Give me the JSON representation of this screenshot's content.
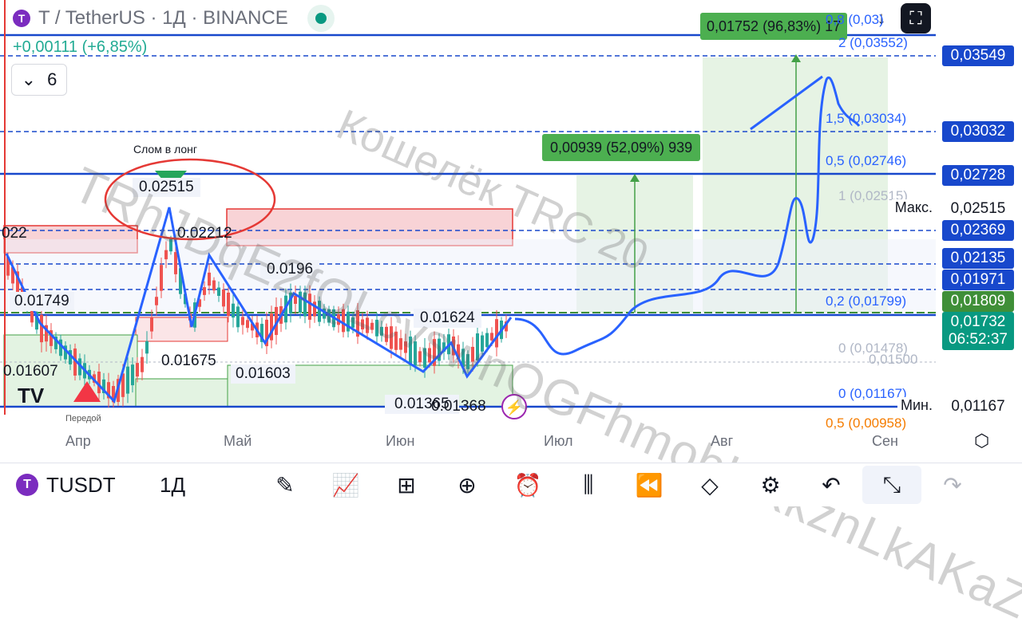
{
  "header": {
    "title": "T / TetherUS · 1Д · BINANCE",
    "change": "+0,00111 (+6,85%)",
    "indicators_count": "6"
  },
  "top_buttons": {
    "download_icon": "arrow-down-icon",
    "fullscreen_icon": "fullscreen-icon"
  },
  "price_scale": [
    {
      "label": "0,03549",
      "color": "#1848cc"
    },
    {
      "label": "0,03032",
      "color": "#1848cc"
    },
    {
      "label": "0,02728",
      "color": "#1848cc"
    },
    {
      "label": "0,02515",
      "color": "#ffffff",
      "text": "#131722",
      "tag": "Макс."
    },
    {
      "label": "0,02369",
      "color": "#1848cc"
    },
    {
      "label": "0,02135",
      "color": "#1848cc"
    },
    {
      "label": "0,01971",
      "color": "#1848cc"
    },
    {
      "label": "0,01809",
      "color": "#3f8f38"
    },
    {
      "label": "0,01732",
      "color": "#089981",
      "sub": "06:52:37"
    },
    {
      "label": "0,01167",
      "color": "#ffffff",
      "text": "#131722",
      "tag": "Мин."
    }
  ],
  "fib_labels": [
    "2 (0,03552)",
    "1,5 (0,03034)",
    "0,5 (0,02746)",
    "1 (0,02515)",
    "0,2 (0,01799)",
    "0 (0,01478)",
    "0 (0,01167)",
    "0,8 (0,03)",
    "0,5 (0,00958)",
    "0,01500"
  ],
  "measure_labels": [
    "0,01752 (96,83%) 17",
    "0,00939 (52,09%) 939"
  ],
  "annotations": {
    "long_break": "Слом в лонг",
    "prices": [
      "0.02515",
      "0.02212",
      "0.0196",
      "0.01749",
      "0.01624",
      "0.01675",
      "0.01607",
      "0.01603",
      "0.01365",
      "0.01368",
      "022"
    ]
  },
  "watermark_line1": "TRhJDqE2fQLcvswnQGFhmobHKkznLkAKaZ",
  "watermark_line2": "Кошелёк TRC 20",
  "time_axis": [
    "Апр",
    "Май",
    "Июн",
    "Июл",
    "Авг",
    "Сен"
  ],
  "misc_text": {
    "small": "Передой"
  },
  "bottom_bar": {
    "symbol": "TUSDT",
    "timeframe": "1Д",
    "tools": [
      {
        "name": "draw-icon",
        "glyph": "✎"
      },
      {
        "name": "indicators-icon",
        "glyph": "📈"
      },
      {
        "name": "layout-icon",
        "glyph": "⊞"
      },
      {
        "name": "add-icon",
        "glyph": "⊕"
      },
      {
        "name": "alert-icon",
        "glyph": "⏰"
      },
      {
        "name": "candles-icon",
        "glyph": "⫼"
      },
      {
        "name": "replay-icon",
        "glyph": "⏪"
      },
      {
        "name": "layers-icon",
        "glyph": "◇"
      },
      {
        "name": "settings-icon",
        "glyph": "⚙"
      },
      {
        "name": "undo-icon",
        "glyph": "↶"
      },
      {
        "name": "collapse-icon",
        "glyph": "⤡"
      },
      {
        "name": "redo-icon",
        "glyph": "↷"
      }
    ]
  }
}
